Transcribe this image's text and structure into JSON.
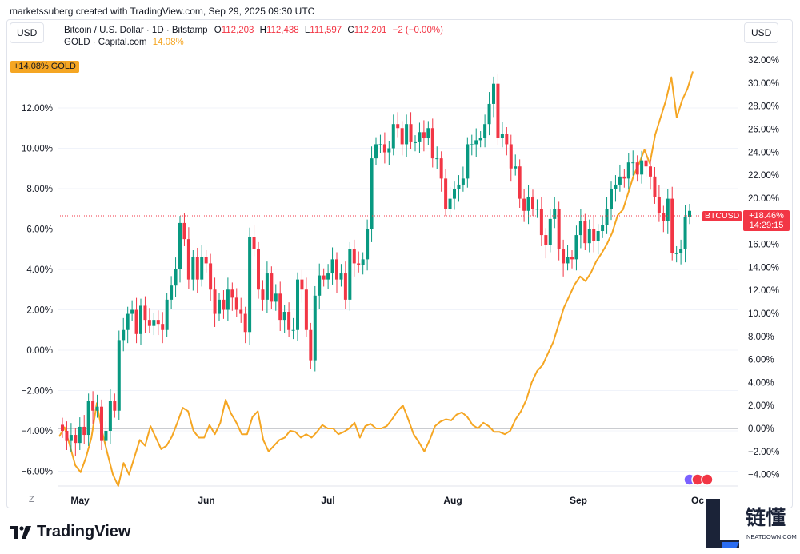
{
  "header": {
    "attribution": "marketssuberg created with TradingView.com, Sep 29, 2025 09:30 UTC"
  },
  "left_unit": "USD",
  "right_unit": "USD",
  "legend": {
    "main_symbol": "Bitcoin / U.S. Dollar · 1D · Bitstamp",
    "o_label": "O",
    "o_value": "112,203",
    "h_label": "H",
    "h_value": "112,438",
    "l_label": "L",
    "l_value": "111,597",
    "c_label": "C",
    "c_value": "112,201",
    "change": "−2 (−0.00%)",
    "compare_symbol": "GOLD · Capital.com",
    "compare_value": "14.08%"
  },
  "gold_tag": {
    "value": "+14.08%",
    "symbol": "GOLD"
  },
  "btc_tag": {
    "symbol": "BTCUSD",
    "value": "+18.46%",
    "countdown": "14:29:15"
  },
  "brand": "TradingView",
  "watermark": {
    "cn": "链懂",
    "en": "NEATDOWN.COM",
    "letter": "L"
  },
  "colors": {
    "up": "#089981",
    "down": "#f23645",
    "gold": "#f5a623",
    "grid": "#f0f3fa",
    "axis_text": "#131722"
  },
  "chart_data": {
    "type": "line",
    "title": "",
    "x_ticks": [
      "May",
      "Jun",
      "Jul",
      "Aug",
      "Sep",
      "Oc"
    ],
    "left_axis": {
      "ticks": [
        "12.00%",
        "10.00%",
        "8.00%",
        "6.00%",
        "4.00%",
        "2.00%",
        "0.00%",
        "−2.00%",
        "−4.00%",
        "−6.00%"
      ],
      "ylim": [
        -6.5,
        13.5
      ]
    },
    "right_axis": {
      "ticks": [
        "32.00%",
        "30.00%",
        "28.00%",
        "26.00%",
        "24.00%",
        "22.00%",
        "20.00%",
        "18.00%",
        "16.00%",
        "14.00%",
        "12.00%",
        "10.00%",
        "8.00%",
        "6.00%",
        "4.00%",
        "2.00%",
        "0.00%",
        "−2.00%",
        "−4.00%"
      ],
      "ylim": [
        -4.5,
        32.5
      ]
    },
    "series": [
      {
        "name": "BTCUSD",
        "style": "candles",
        "close": [
          -4.0,
          -4.5,
          -4.2,
          -4.6,
          -3.8,
          -4.2,
          -2.5,
          -3.0,
          -2.8,
          -4.5,
          -4.0,
          -2.5,
          -3.0,
          0.5,
          1.0,
          1.8,
          2.0,
          0.8,
          2.2,
          1.5,
          1.2,
          1.5,
          1.3,
          1.0,
          2.5,
          3.2,
          4.0,
          6.3,
          5.5,
          3.5,
          4.6,
          3.5,
          4.6,
          4.3,
          3.0,
          1.8,
          2.5,
          2.0,
          3.0,
          2.6,
          2.0,
          1.8,
          0.9,
          5.6,
          5.0,
          3.0,
          2.5,
          3.8,
          2.4,
          2.8,
          1.5,
          1.9,
          1.0,
          1.0,
          3.5,
          3.0,
          1.0,
          -0.5,
          2.7,
          3.7,
          3.5,
          3.8,
          4.5,
          3.5,
          3.8,
          2.5,
          5.0,
          4.3,
          4.2,
          4.5,
          6.0,
          9.5,
          10.2,
          10.2,
          9.8,
          10.0,
          11.2,
          11.0,
          10.2,
          11.2,
          10.3,
          10.3,
          10.8,
          10.5,
          11.0,
          9.5,
          9.5,
          8.5,
          7.0,
          7.5,
          8.0,
          8.2,
          8.5,
          10.2,
          10.2,
          10.4,
          10.5,
          11.2,
          12.2,
          13.2,
          10.5,
          10.7,
          10.2,
          9.0,
          9.1,
          7.5,
          6.9,
          7.6,
          7.0,
          7.0,
          5.7,
          5.2,
          6.5,
          7.0,
          5.0,
          4.3,
          4.6,
          4.5,
          5.7,
          6.4,
          5.3,
          6.0,
          5.4,
          5.9,
          6.2,
          7.0,
          8.0,
          8.2,
          8.6,
          8.5,
          9.3,
          9.3,
          8.7,
          9.4,
          9.1,
          8.6,
          7.6,
          6.8,
          6.4,
          7.5,
          4.8,
          4.8,
          5.0,
          6.6,
          6.9
        ],
        "note": "approximate daily closes, left-axis scale (%)"
      },
      {
        "name": "GOLD",
        "values": [
          -0.7,
          0.1,
          -1.5,
          -3.2,
          -3.8,
          -2.5,
          -0.8,
          2.2,
          -0.3,
          -2.2,
          -4.0,
          -5.0,
          -3.0,
          -4.0,
          -2.5,
          -1.0,
          -1.5,
          0.2,
          -0.8,
          -1.8,
          -1.5,
          -0.7,
          0.5,
          1.8,
          1.5,
          -0.2,
          -0.8,
          -0.8,
          0.3,
          -0.5,
          0.5,
          2.5,
          1.3,
          0.5,
          -0.5,
          -0.5,
          1.0,
          1.5,
          -1.0,
          -2.0,
          -1.5,
          -1.0,
          -0.8,
          -0.2,
          -0.3,
          -0.8,
          -0.5,
          -0.8,
          -0.3,
          0.3,
          0.0,
          0.0,
          -0.5,
          -0.3,
          0.0,
          0.5,
          -0.8,
          0.2,
          0.4,
          0.0,
          0.0,
          0.2,
          0.8,
          1.5,
          2.0,
          0.8,
          -0.5,
          -1.2,
          -2.0,
          -1.0,
          0.2,
          0.6,
          0.8,
          0.7,
          1.2,
          1.4,
          1.0,
          0.3,
          0.0,
          0.5,
          0.2,
          -0.3,
          -0.3,
          -0.5,
          -0.2,
          0.8,
          1.5,
          2.5,
          4.0,
          5.0,
          5.5,
          6.5,
          7.5,
          9.0,
          10.5,
          11.5,
          12.5,
          13.2,
          12.8,
          13.5,
          14.5,
          15.2,
          16.0,
          17.0,
          18.5,
          19.0,
          20.5,
          22.0,
          23.0,
          24.2,
          23.0,
          25.5,
          27.0,
          28.5,
          30.5,
          27.0,
          28.5,
          29.5,
          31.0
        ],
        "axis": "right",
        "note": "approximate, right-axis scale (%)"
      }
    ]
  }
}
